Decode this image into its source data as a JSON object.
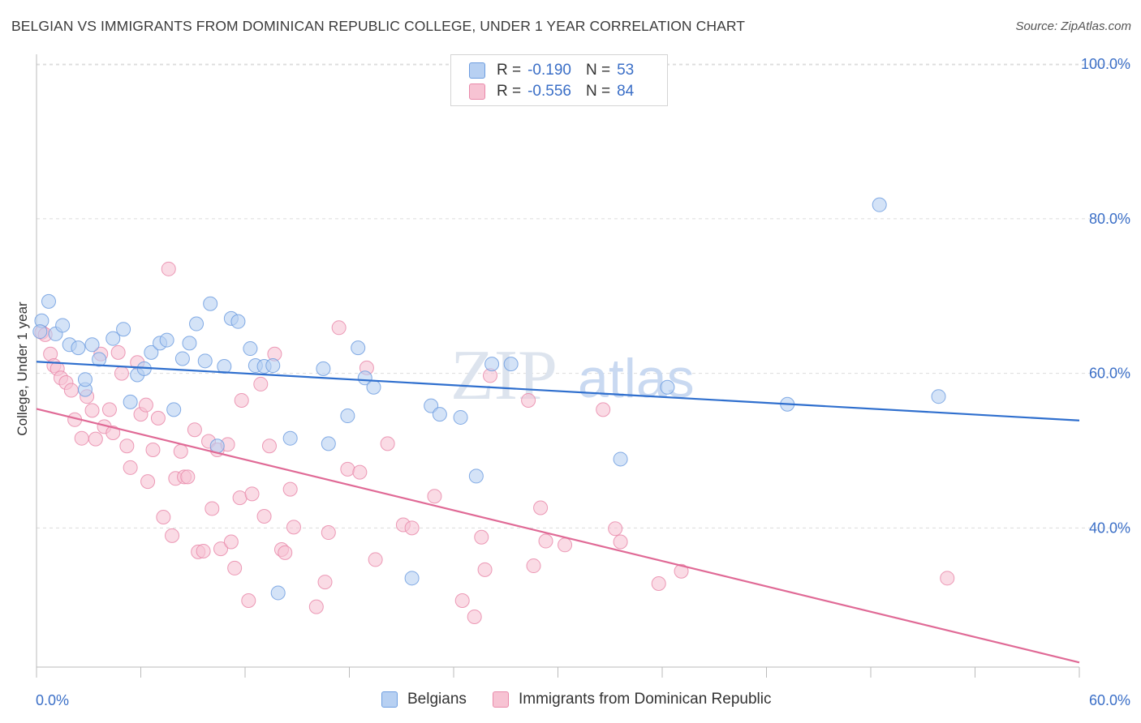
{
  "title": "BELGIAN VS IMMIGRANTS FROM DOMINICAN REPUBLIC COLLEGE, UNDER 1 YEAR CORRELATION CHART",
  "source": "Source: ZipAtlas.com",
  "watermark": {
    "zip": "ZIP",
    "atlas": "atlas"
  },
  "colors": {
    "blue_fill": "#b7d0f2",
    "blue_stroke": "#6e9ee0",
    "blue_line": "#2f6fce",
    "pink_fill": "#f7c3d3",
    "pink_stroke": "#e98aaa",
    "pink_line": "#e06a96",
    "axis_text": "#3b6fc7",
    "grid": "#dcdcdc"
  },
  "legend": {
    "rows": [
      {
        "r_label": "R =",
        "r_value": "-0.190",
        "n_label": "N =",
        "n_value": "53"
      },
      {
        "r_label": "R =",
        "r_value": "-0.556",
        "n_label": "N =",
        "n_value": "84"
      }
    ],
    "series_names": [
      "Belgians",
      "Immigrants from Dominican Republic"
    ]
  },
  "chart_data": {
    "type": "scatter",
    "ylabel": "College, Under 1 year",
    "xlabel": "",
    "xlim": [
      0,
      60
    ],
    "ylim": [
      22,
      102
    ],
    "x_tick_labels": [
      "0.0%",
      "60.0%"
    ],
    "y_ticks": [
      40,
      60,
      80,
      100
    ],
    "y_tick_labels": [
      "40.0%",
      "60.0%",
      "80.0%",
      "100.0%"
    ],
    "grid": true,
    "legend_position": "top-center",
    "series": [
      {
        "name": "Belgians",
        "trend": [
          [
            0,
            61.5
          ],
          [
            60,
            53.9
          ]
        ],
        "points": [
          [
            0.3,
            66.8
          ],
          [
            0.7,
            69.3
          ],
          [
            1.1,
            65.1
          ],
          [
            1.5,
            66.2
          ],
          [
            1.9,
            63.7
          ],
          [
            2.4,
            63.3
          ],
          [
            2.8,
            57.9
          ],
          [
            2.8,
            59.2
          ],
          [
            3.2,
            63.7
          ],
          [
            3.6,
            61.8
          ],
          [
            4.4,
            64.5
          ],
          [
            5.0,
            65.7
          ],
          [
            5.4,
            56.3
          ],
          [
            5.8,
            59.8
          ],
          [
            6.2,
            60.6
          ],
          [
            6.6,
            62.7
          ],
          [
            7.1,
            63.9
          ],
          [
            7.5,
            64.3
          ],
          [
            7.9,
            55.3
          ],
          [
            8.4,
            61.9
          ],
          [
            8.8,
            63.9
          ],
          [
            9.2,
            66.4
          ],
          [
            9.7,
            61.6
          ],
          [
            10.0,
            69.0
          ],
          [
            10.4,
            50.6
          ],
          [
            10.8,
            60.9
          ],
          [
            11.2,
            67.1
          ],
          [
            11.6,
            66.7
          ],
          [
            12.3,
            63.2
          ],
          [
            12.6,
            61.0
          ],
          [
            13.1,
            60.9
          ],
          [
            13.6,
            61.0
          ],
          [
            13.9,
            31.6
          ],
          [
            14.6,
            51.6
          ],
          [
            16.5,
            60.6
          ],
          [
            16.8,
            50.9
          ],
          [
            17.9,
            54.5
          ],
          [
            18.5,
            63.3
          ],
          [
            18.9,
            59.4
          ],
          [
            19.4,
            58.2
          ],
          [
            21.6,
            33.5
          ],
          [
            22.7,
            55.8
          ],
          [
            23.2,
            54.7
          ],
          [
            24.4,
            54.3
          ],
          [
            25.3,
            46.7
          ],
          [
            26.2,
            61.2
          ],
          [
            27.3,
            61.2
          ],
          [
            33.6,
            48.9
          ],
          [
            36.3,
            58.2
          ],
          [
            43.2,
            56.0
          ],
          [
            48.5,
            81.8
          ],
          [
            51.9,
            57.0
          ],
          [
            0.2,
            65.4
          ]
        ]
      },
      {
        "name": "Immigrants from Dominican Republic",
        "trend": [
          [
            0,
            55.4
          ],
          [
            60,
            22.6
          ]
        ],
        "points": [
          [
            0.3,
            65.3
          ],
          [
            0.5,
            65.0
          ],
          [
            0.8,
            62.5
          ],
          [
            1.0,
            61.0
          ],
          [
            1.2,
            60.6
          ],
          [
            1.4,
            59.4
          ],
          [
            1.7,
            58.8
          ],
          [
            2.0,
            57.8
          ],
          [
            2.2,
            54.0
          ],
          [
            2.6,
            51.6
          ],
          [
            2.9,
            57.0
          ],
          [
            3.2,
            55.2
          ],
          [
            3.4,
            51.5
          ],
          [
            3.7,
            62.5
          ],
          [
            3.9,
            53.1
          ],
          [
            4.2,
            55.3
          ],
          [
            4.4,
            52.3
          ],
          [
            4.7,
            62.7
          ],
          [
            4.9,
            60.0
          ],
          [
            5.2,
            50.6
          ],
          [
            5.4,
            47.8
          ],
          [
            5.8,
            61.4
          ],
          [
            6.0,
            54.7
          ],
          [
            6.3,
            55.9
          ],
          [
            6.4,
            46.0
          ],
          [
            6.7,
            50.1
          ],
          [
            7.0,
            54.2
          ],
          [
            7.3,
            41.4
          ],
          [
            7.6,
            73.5
          ],
          [
            7.8,
            39.0
          ],
          [
            8.0,
            46.4
          ],
          [
            8.3,
            49.9
          ],
          [
            8.5,
            46.6
          ],
          [
            8.7,
            46.6
          ],
          [
            9.1,
            52.7
          ],
          [
            9.3,
            36.9
          ],
          [
            9.6,
            37.0
          ],
          [
            9.9,
            51.2
          ],
          [
            10.1,
            42.5
          ],
          [
            10.4,
            50.1
          ],
          [
            10.6,
            37.3
          ],
          [
            11.0,
            50.8
          ],
          [
            11.2,
            38.2
          ],
          [
            11.4,
            34.8
          ],
          [
            11.7,
            43.9
          ],
          [
            11.8,
            56.5
          ],
          [
            12.2,
            30.6
          ],
          [
            12.4,
            44.4
          ],
          [
            12.9,
            58.6
          ],
          [
            13.1,
            41.5
          ],
          [
            13.4,
            50.6
          ],
          [
            13.7,
            62.5
          ],
          [
            14.1,
            37.2
          ],
          [
            14.3,
            36.8
          ],
          [
            14.6,
            45.0
          ],
          [
            14.8,
            40.1
          ],
          [
            16.1,
            29.8
          ],
          [
            16.6,
            33.0
          ],
          [
            16.8,
            39.4
          ],
          [
            17.4,
            65.9
          ],
          [
            17.9,
            47.6
          ],
          [
            18.6,
            47.2
          ],
          [
            19.0,
            60.7
          ],
          [
            19.5,
            35.9
          ],
          [
            20.2,
            50.9
          ],
          [
            21.1,
            40.4
          ],
          [
            21.6,
            40.0
          ],
          [
            22.9,
            44.1
          ],
          [
            24.5,
            30.6
          ],
          [
            25.2,
            28.5
          ],
          [
            25.6,
            38.8
          ],
          [
            25.8,
            34.6
          ],
          [
            26.1,
            59.7
          ],
          [
            28.3,
            56.5
          ],
          [
            28.6,
            35.1
          ],
          [
            29.0,
            42.6
          ],
          [
            29.3,
            38.3
          ],
          [
            30.4,
            37.8
          ],
          [
            32.6,
            55.3
          ],
          [
            33.3,
            39.9
          ],
          [
            33.6,
            38.2
          ],
          [
            35.8,
            32.8
          ],
          [
            37.1,
            34.4
          ],
          [
            52.4,
            33.5
          ]
        ]
      }
    ]
  }
}
